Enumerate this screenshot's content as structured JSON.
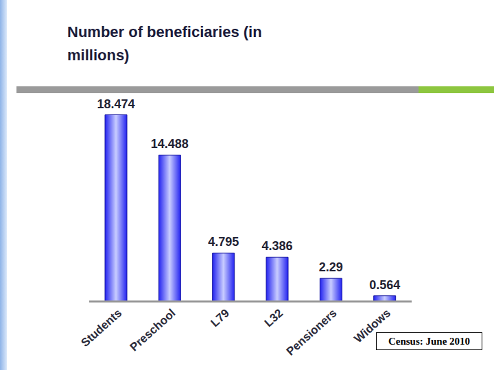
{
  "chart_data": {
    "type": "bar",
    "title": "Number of beneficiaries (in millions)",
    "categories": [
      "Students",
      "Preschool",
      "L79",
      "L32",
      "Pensioners",
      "Widows"
    ],
    "values": [
      18.474,
      14.488,
      4.795,
      4.386,
      2.29,
      0.564
    ],
    "color": "#2323f0",
    "ylim": [
      0,
      20
    ],
    "data_labels": true,
    "tick_labels": "x",
    "annotation": "Census: June 2010"
  }
}
